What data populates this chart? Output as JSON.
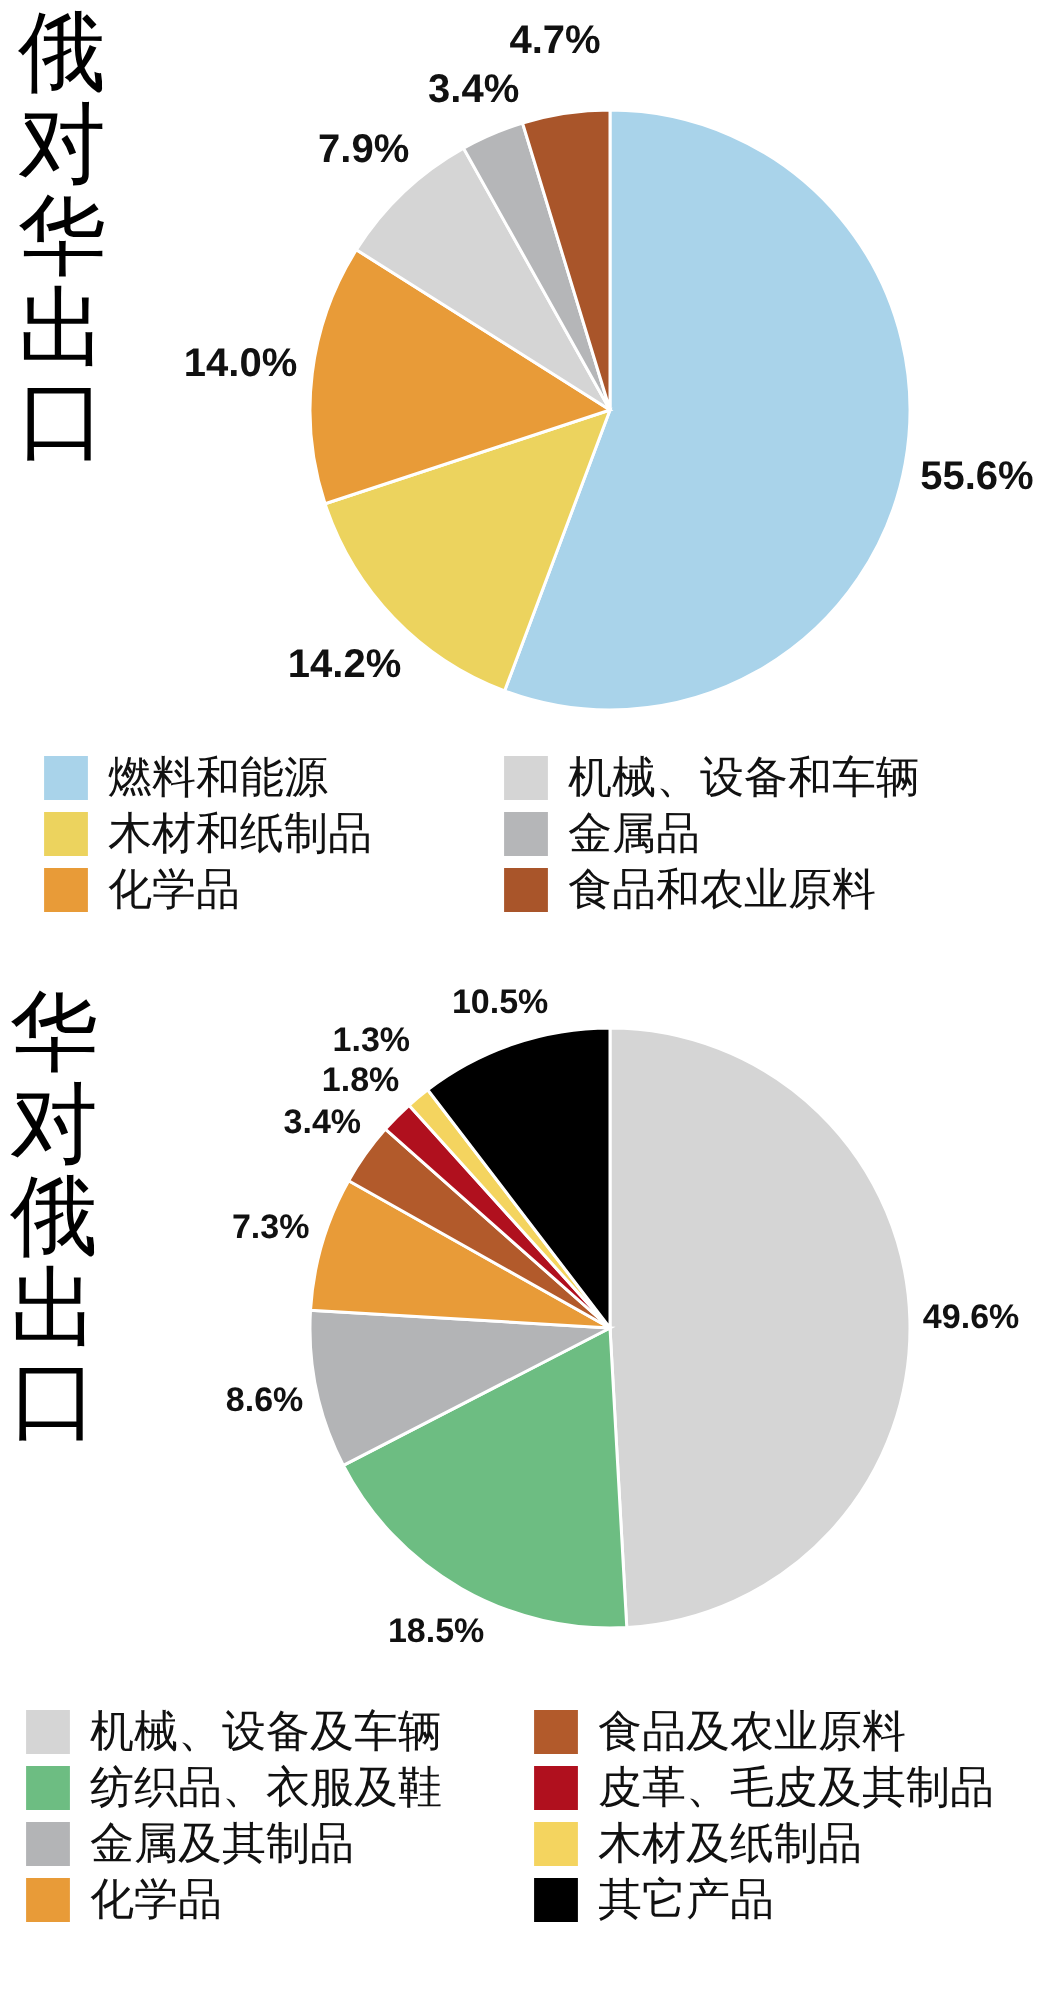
{
  "chart_data": [
    {
      "type": "pie",
      "title": "俄对华出口",
      "categories": [
        "燃料和能源",
        "木材和纸制品",
        "化学品",
        "机械、设备和车辆",
        "金属品",
        "食品和农业原料"
      ],
      "values": [
        55.6,
        14.2,
        14.0,
        7.9,
        3.4,
        4.7
      ],
      "value_labels": [
        "55.6%",
        "14.2%",
        "14.0%",
        "7.9%",
        "3.4%",
        "4.7%"
      ],
      "colors": [
        "#a9d3ea",
        "#ecd35e",
        "#e89b38",
        "#d5d5d5",
        "#b5b6b8",
        "#a9552a"
      ],
      "legend": "bottom"
    },
    {
      "type": "pie",
      "title": "华对俄出口",
      "categories": [
        "机械、设备及车辆",
        "纺织品、衣服及鞋",
        "金属及其制品",
        "化学品",
        "食品及农业原料",
        "皮革、毛皮及其制品",
        "木材及纸制品",
        "其它产品"
      ],
      "values": [
        49.6,
        18.5,
        8.6,
        7.3,
        3.4,
        1.8,
        1.3,
        10.5
      ],
      "value_labels": [
        "49.6%",
        "18.5%",
        "8.6%",
        "7.3%",
        "3.4%",
        "1.8%",
        "1.3%",
        "10.5%"
      ],
      "colors": [
        "#d5d5d5",
        "#6dbd82",
        "#b3b4b6",
        "#e89b38",
        "#b25a2b",
        "#b0101e",
        "#f4d45f",
        "#000000"
      ],
      "legend": "bottom"
    }
  ]
}
